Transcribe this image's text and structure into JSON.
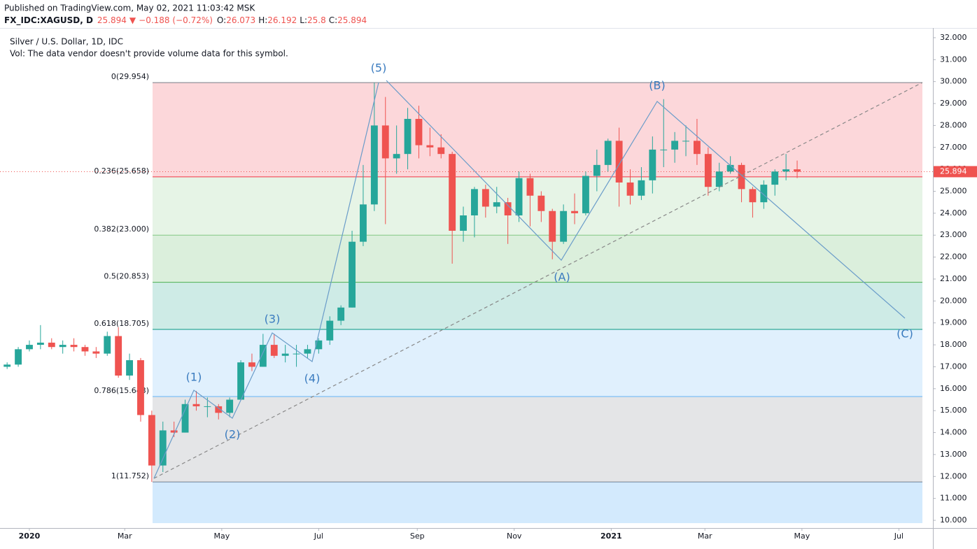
{
  "header": {
    "published": "Published on TradingView.com, May 02, 2021 11:03:42 MSK",
    "symbol": "FX_IDC:XAGUSD, D",
    "price": 25.894,
    "arrow": "▼",
    "change": "−0.188 (−0.72%)",
    "o_label": "O:",
    "open": 26.073,
    "h_label": "H:",
    "high": 26.192,
    "l_label": "L:",
    "low": 25.8,
    "c_label": "C:",
    "close": 25.894,
    "name": "Silver / U.S. Dollar, 1D, IDC",
    "vol": "Vol: The data vendor doesn't provide volume data for this symbol."
  },
  "chart_data": {
    "type": "candlestick",
    "x": [
      -2,
      -1,
      0,
      1,
      2,
      3,
      4,
      5,
      6,
      7,
      8,
      9,
      10,
      11,
      12,
      13,
      14,
      15,
      16,
      17,
      18,
      19,
      20,
      21,
      22,
      23,
      24,
      25,
      26,
      27,
      28,
      29,
      30,
      31,
      32,
      33,
      34,
      35,
      36,
      37,
      38,
      39,
      40,
      41,
      42,
      43,
      44,
      45,
      46,
      47,
      48,
      49,
      50,
      51,
      52,
      53,
      54,
      55,
      56,
      57,
      58,
      59,
      60,
      61,
      62,
      63,
      64,
      65,
      66,
      67,
      68,
      69
    ],
    "open": [
      17.0,
      17.1,
      17.8,
      18.0,
      18.1,
      17.9,
      18.0,
      17.9,
      17.7,
      17.6,
      18.4,
      16.6,
      17.3,
      14.8,
      12.5,
      14.1,
      14.0,
      15.3,
      15.2,
      15.2,
      14.9,
      15.5,
      17.2,
      17.0,
      18.0,
      17.5,
      17.6,
      17.6,
      17.8,
      18.2,
      19.1,
      19.7,
      22.7,
      24.4,
      28.0,
      26.5,
      26.7,
      28.3,
      27.1,
      27.0,
      26.7,
      23.2,
      23.9,
      25.1,
      24.3,
      24.5,
      23.9,
      25.6,
      24.8,
      24.1,
      22.7,
      24.1,
      24.0,
      25.7,
      26.2,
      27.3,
      25.4,
      24.8,
      25.5,
      26.9,
      26.9,
      27.3,
      27.3,
      26.7,
      25.2,
      25.9,
      26.2,
      25.1,
      24.5,
      25.3,
      25.9,
      26.0
    ],
    "high": [
      17.2,
      17.9,
      18.2,
      18.9,
      18.3,
      18.2,
      18.3,
      18.0,
      17.9,
      18.6,
      18.8,
      17.6,
      17.4,
      15.0,
      14.5,
      14.5,
      15.5,
      15.9,
      15.6,
      15.3,
      15.6,
      17.3,
      17.6,
      18.5,
      18.5,
      18.0,
      18.0,
      18.0,
      18.3,
      19.3,
      19.8,
      23.2,
      26.2,
      29.95,
      29.3,
      28.0,
      28.8,
      28.9,
      27.9,
      27.6,
      26.8,
      24.3,
      25.2,
      25.3,
      25.2,
      24.7,
      25.9,
      25.8,
      25.0,
      24.2,
      24.4,
      24.9,
      25.9,
      26.9,
      27.4,
      27.9,
      26.0,
      26.1,
      27.5,
      29.2,
      27.7,
      28.0,
      28.3,
      27.0,
      26.3,
      26.6,
      26.3,
      25.2,
      25.5,
      26.0,
      26.7,
      26.4
    ],
    "low": [
      16.9,
      17.0,
      17.7,
      17.8,
      17.8,
      17.6,
      17.7,
      17.5,
      17.4,
      17.5,
      16.5,
      16.4,
      14.5,
      11.75,
      12.2,
      13.8,
      14.0,
      15.0,
      14.7,
      14.6,
      14.7,
      15.5,
      16.8,
      17.0,
      17.4,
      17.2,
      17.0,
      17.4,
      17.6,
      18.0,
      18.9,
      19.7,
      22.5,
      24.1,
      23.5,
      25.8,
      26.0,
      26.5,
      26.6,
      26.5,
      21.7,
      22.7,
      22.9,
      23.8,
      24.0,
      22.6,
      23.6,
      23.4,
      23.6,
      21.9,
      22.6,
      23.5,
      23.9,
      25.0,
      25.9,
      24.3,
      24.4,
      24.6,
      24.9,
      26.1,
      26.3,
      26.6,
      26.2,
      24.8,
      25.0,
      25.8,
      24.5,
      23.8,
      24.2,
      24.8,
      25.5,
      25.6
    ],
    "close": [
      17.1,
      17.8,
      18.0,
      18.1,
      17.9,
      18.0,
      17.9,
      17.7,
      17.6,
      18.4,
      16.6,
      17.3,
      14.8,
      12.5,
      14.1,
      14.0,
      15.3,
      15.2,
      15.2,
      14.9,
      15.5,
      17.2,
      17.0,
      18.0,
      17.5,
      17.6,
      17.6,
      17.8,
      18.2,
      19.1,
      19.7,
      22.7,
      24.4,
      28.0,
      26.5,
      26.7,
      28.3,
      27.1,
      27.0,
      26.7,
      23.2,
      23.9,
      25.1,
      24.3,
      24.5,
      23.9,
      25.6,
      24.8,
      24.1,
      22.7,
      24.1,
      24.0,
      25.7,
      26.2,
      27.3,
      25.4,
      24.8,
      25.5,
      26.9,
      26.9,
      27.3,
      27.3,
      26.7,
      25.2,
      25.9,
      26.2,
      25.1,
      24.5,
      25.3,
      25.9,
      26.0,
      25.894
    ],
    "up_color": "#26a69a",
    "down_color": "#ef5350",
    "xlim": [
      -2.64,
      81.2
    ],
    "xticks": [
      {
        "value": 0,
        "label": "2020"
      },
      {
        "value": 8.57,
        "label": "Mar"
      },
      {
        "value": 17.29,
        "label": "May"
      },
      {
        "value": 26,
        "label": "Jul"
      },
      {
        "value": 34.86,
        "label": "Sep"
      },
      {
        "value": 43.57,
        "label": "Nov"
      },
      {
        "value": 52.29,
        "label": "2021"
      },
      {
        "value": 60.71,
        "label": "Mar"
      },
      {
        "value": 69.43,
        "label": "May"
      },
      {
        "value": 78.14,
        "label": "Jul"
      }
    ],
    "ylim": [
      9.65,
      32.38
    ],
    "yticks": [
      {
        "value": 10,
        "label": "10.000"
      },
      {
        "value": 11,
        "label": "11.000"
      },
      {
        "value": 12,
        "label": "12.000"
      },
      {
        "value": 13,
        "label": "13.000"
      },
      {
        "value": 14,
        "label": "14.000"
      },
      {
        "value": 15,
        "label": "15.000"
      },
      {
        "value": 16,
        "label": "16.000"
      },
      {
        "value": 17,
        "label": "17.000"
      },
      {
        "value": 18,
        "label": "18.000"
      },
      {
        "value": 19,
        "label": "19.000"
      },
      {
        "value": 20,
        "label": "20.000"
      },
      {
        "value": 21,
        "label": "21.000"
      },
      {
        "value": 22,
        "label": "22.000"
      },
      {
        "value": 23,
        "label": "23.000"
      },
      {
        "value": 24,
        "label": "24.000"
      },
      {
        "value": 25,
        "label": "25.000"
      },
      {
        "value": 26,
        "label": "26.000"
      },
      {
        "value": 27,
        "label": "27.000"
      },
      {
        "value": 28,
        "label": "28.000"
      },
      {
        "value": 29,
        "label": "29.000"
      },
      {
        "value": 30,
        "label": "30.000"
      },
      {
        "value": 31,
        "label": "31.000"
      },
      {
        "value": 32,
        "label": "32.000"
      }
    ],
    "last_price": 25.894,
    "fib_levels": [
      {
        "value": 29.954,
        "label": "0(29.954)",
        "color": "#787b86"
      },
      {
        "value": 25.658,
        "label": "0.236(25.658)",
        "color": "#f23645"
      },
      {
        "value": 23.0,
        "label": "0.382(23.000)",
        "color": "#81c784"
      },
      {
        "value": 20.853,
        "label": "0.5(20.853)",
        "color": "#4caf50"
      },
      {
        "value": 18.705,
        "label": "0.618(18.705)",
        "color": "#089981"
      },
      {
        "value": 15.643,
        "label": "0.786(15.643)",
        "color": "#64b5f6"
      },
      {
        "value": 11.752,
        "label": "1(11.752)",
        "color": "#787b86"
      }
    ],
    "waves": [
      "(1)",
      "(2)",
      "(3)",
      "(4)",
      "(5)",
      "(A)",
      "(B)",
      "(C)"
    ]
  }
}
